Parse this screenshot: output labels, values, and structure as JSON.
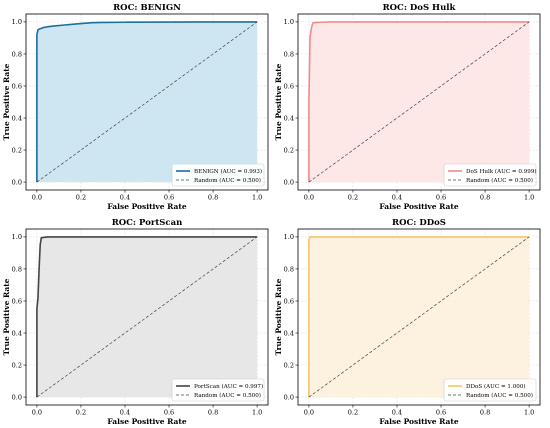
{
  "chart_data": [
    {
      "type": "line",
      "title": "ROC: BENIGN",
      "xlabel": "False Positive Rate",
      "ylabel": "True Positive Rate",
      "xlim": [
        0.0,
        1.0
      ],
      "ylim": [
        0.0,
        1.0
      ],
      "x_ticks": [
        "0.0",
        "0.2",
        "0.4",
        "0.6",
        "0.8",
        "1.0"
      ],
      "y_ticks": [
        "0.0",
        "0.2",
        "0.4",
        "0.6",
        "0.8",
        "1.0"
      ],
      "grid": true,
      "legend": "lower right",
      "fill_color": "#c6e2ef",
      "series": [
        {
          "name": "BENIGN (AUC = 0.993)",
          "color": "#1f6e9c",
          "style": "solid",
          "x": [
            0,
            0,
            0.005,
            0.01,
            0.02,
            0.03,
            0.05,
            0.08,
            0.12,
            0.16,
            0.2,
            0.25,
            0.3,
            0.4,
            0.6,
            0.8,
            1.0
          ],
          "y": [
            0,
            0.92,
            0.95,
            0.955,
            0.96,
            0.965,
            0.97,
            0.975,
            0.98,
            0.985,
            0.99,
            0.995,
            0.997,
            0.998,
            0.999,
            1.0,
            1.0
          ]
        },
        {
          "name": "Random (AUC = 0.500)",
          "color": "#444444",
          "style": "dashed",
          "x": [
            0,
            1
          ],
          "y": [
            0,
            1
          ]
        }
      ]
    },
    {
      "type": "line",
      "title": "ROC: DoS Hulk",
      "xlabel": "False Positive Rate",
      "ylabel": "True Positive Rate",
      "xlim": [
        0.0,
        1.0
      ],
      "ylim": [
        0.0,
        1.0
      ],
      "x_ticks": [
        "0.0",
        "0.2",
        "0.4",
        "0.6",
        "0.8",
        "1.0"
      ],
      "y_ticks": [
        "0.0",
        "0.2",
        "0.4",
        "0.6",
        "0.8",
        "1.0"
      ],
      "grid": true,
      "legend": "lower right",
      "fill_color": "#fde3e3",
      "series": [
        {
          "name": "DoS Hulk (AUC = 0.999)",
          "color": "#f08a8a",
          "style": "solid",
          "x": [
            0,
            0,
            0.005,
            0.01,
            0.015,
            0.02,
            0.05,
            0.1,
            1.0
          ],
          "y": [
            0,
            0.5,
            0.9,
            0.95,
            0.98,
            0.995,
            0.998,
            1.0,
            1.0
          ]
        },
        {
          "name": "Random (AUC = 0.500)",
          "color": "#444444",
          "style": "dashed",
          "x": [
            0,
            1
          ],
          "y": [
            0,
            1
          ]
        }
      ]
    },
    {
      "type": "line",
      "title": "ROC: PortScan",
      "xlabel": "False Positive Rate",
      "ylabel": "True Positive Rate",
      "xlim": [
        0.0,
        1.0
      ],
      "ylim": [
        0.0,
        1.0
      ],
      "x_ticks": [
        "0.0",
        "0.2",
        "0.4",
        "0.6",
        "0.8",
        "1.0"
      ],
      "y_ticks": [
        "0.0",
        "0.2",
        "0.4",
        "0.6",
        "0.8",
        "1.0"
      ],
      "grid": true,
      "legend": "lower right",
      "fill_color": "#e3e3e3",
      "series": [
        {
          "name": "PortScan (AUC = 0.997)",
          "color": "#444444",
          "style": "solid",
          "x": [
            0,
            0,
            0.005,
            0.01,
            0.015,
            0.02,
            0.05,
            1.0
          ],
          "y": [
            0,
            0.55,
            0.62,
            0.8,
            0.95,
            0.995,
            1.0,
            1.0
          ]
        },
        {
          "name": "Random (AUC = 0.500)",
          "color": "#444444",
          "style": "dashed",
          "x": [
            0,
            1
          ],
          "y": [
            0,
            1
          ]
        }
      ]
    },
    {
      "type": "line",
      "title": "ROC: DDoS",
      "xlabel": "False Positive Rate",
      "ylabel": "True Positive Rate",
      "xlim": [
        0.0,
        1.0
      ],
      "ylim": [
        0.0,
        1.0
      ],
      "x_ticks": [
        "0.0",
        "0.2",
        "0.4",
        "0.6",
        "0.8",
        "1.0"
      ],
      "y_ticks": [
        "0.0",
        "0.2",
        "0.4",
        "0.6",
        "0.8",
        "1.0"
      ],
      "grid": true,
      "legend": "lower right",
      "fill_color": "#fdefd9",
      "series": [
        {
          "name": "DDoS (AUC = 1.000)",
          "color": "#f5c56b",
          "style": "solid",
          "x": [
            0,
            0,
            0.005,
            1.0
          ],
          "y": [
            0,
            0.98,
            1.0,
            1.0
          ]
        },
        {
          "name": "Random (AUC = 0.500)",
          "color": "#444444",
          "style": "dashed",
          "x": [
            0,
            1
          ],
          "y": [
            0,
            1
          ]
        }
      ]
    }
  ]
}
